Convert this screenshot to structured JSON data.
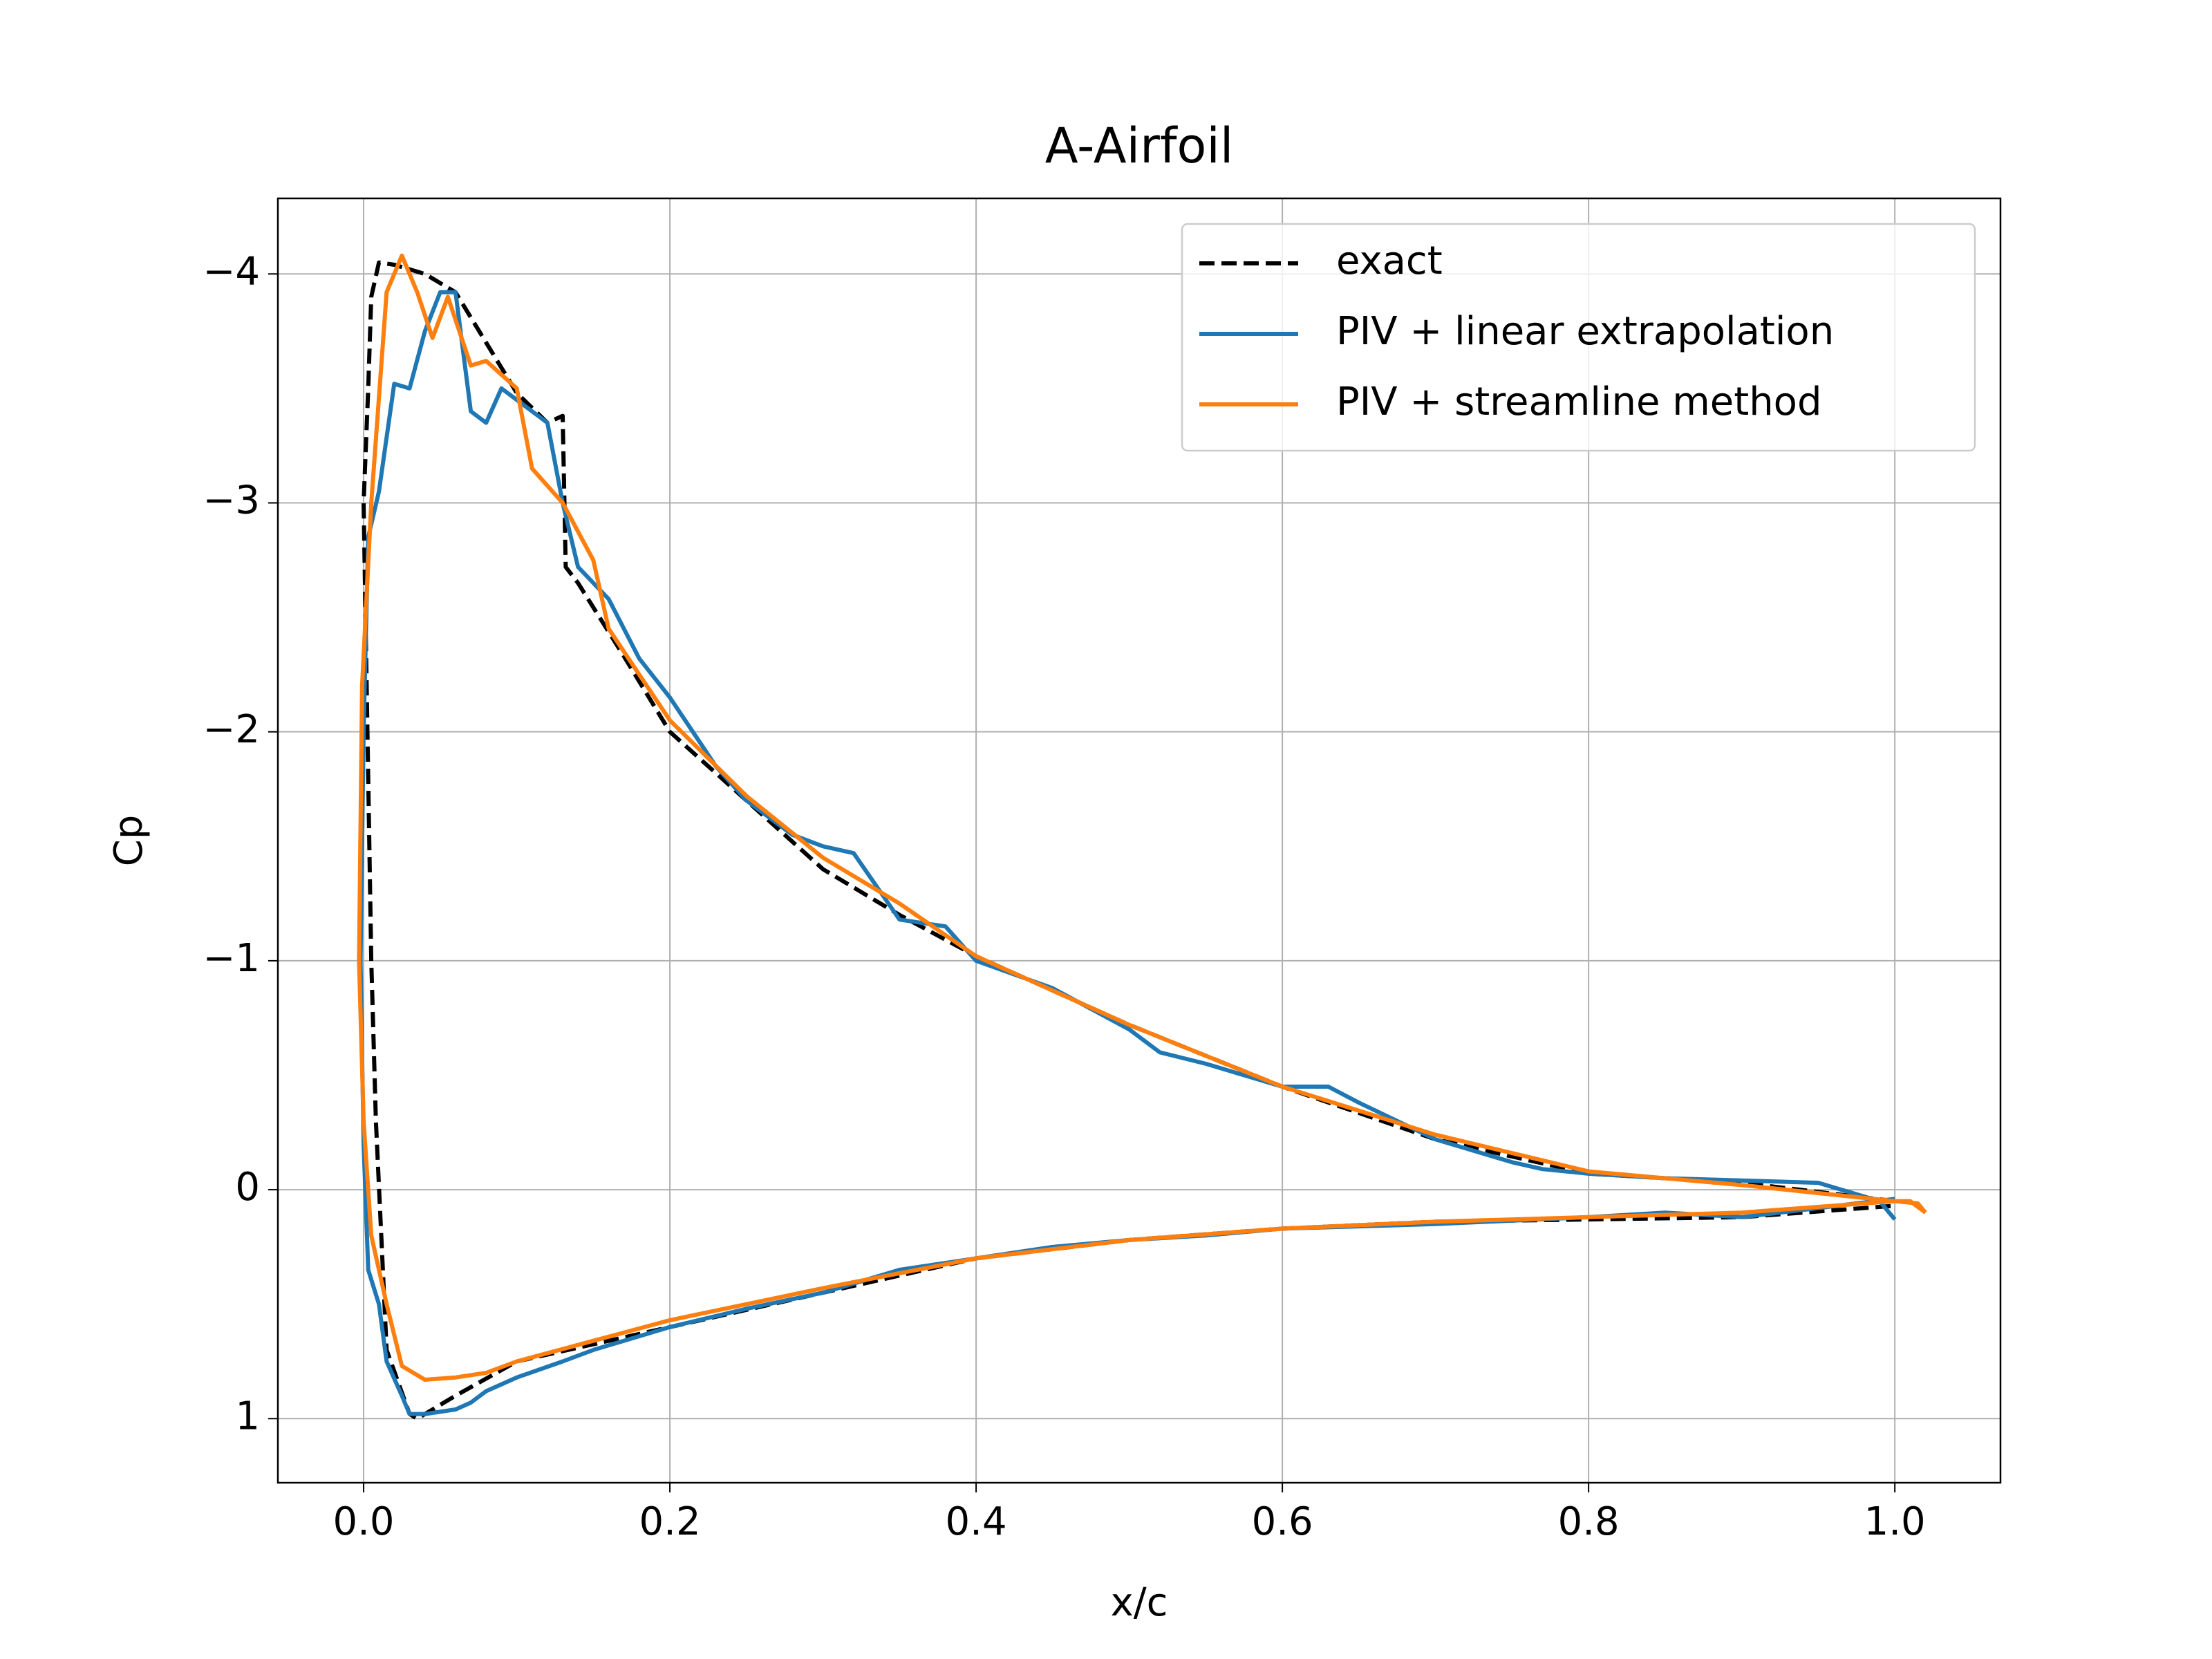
{
  "chart_data": {
    "type": "line",
    "title": "A-Airfoil",
    "x_label": "x/c",
    "y_label": "Cp",
    "xlim": [
      -0.056,
      1.069
    ],
    "ylim": [
      -4.33,
      1.28
    ],
    "y_inverted": true,
    "grid": true,
    "legend": "upper right",
    "xticks": [
      {
        "value": 0,
        "label": "0.0"
      },
      0.2,
      0.4,
      0.6,
      0.8,
      {
        "value": 1,
        "label": "1.0"
      }
    ],
    "yticks": [
      {
        "value": -4,
        "label": "−4"
      },
      {
        "value": -3,
        "label": "−3"
      },
      {
        "value": -2,
        "label": "−2"
      },
      {
        "value": -1,
        "label": "−1"
      },
      0,
      1
    ],
    "series": [
      {
        "name": "exact",
        "color": "#000000",
        "dashed": true,
        "x": [
          1.0,
          0.9,
          0.8,
          0.7,
          0.6,
          0.5,
          0.4,
          0.35,
          0.3,
          0.25,
          0.2,
          0.17,
          0.14,
          0.132,
          0.13,
          0.12,
          0.1,
          0.08,
          0.06,
          0.04,
          0.02,
          0.01,
          0.005,
          0.003,
          0.0,
          0.005,
          0.008,
          0.015,
          0.03,
          0.035,
          0.06,
          0.1,
          0.2,
          0.3,
          0.4,
          0.5,
          0.6,
          0.7,
          0.8,
          0.9,
          1.0
        ],
        "values": [
          0.05,
          -0.03,
          -0.07,
          -0.22,
          -0.45,
          -0.72,
          -1.02,
          -1.2,
          -1.4,
          -1.7,
          -2.0,
          -2.33,
          -2.65,
          -2.72,
          -3.38,
          -3.35,
          -3.48,
          -3.7,
          -3.92,
          -4.0,
          -4.04,
          -4.05,
          -3.9,
          -3.5,
          -3.0,
          -1.0,
          -0.3,
          0.7,
          0.98,
          1.0,
          0.9,
          0.75,
          0.6,
          0.45,
          0.3,
          0.22,
          0.17,
          0.14,
          0.13,
          0.12,
          0.07
        ]
      },
      {
        "name": "PIV + linear extrapolation",
        "color": "#1f77b4",
        "x": [
          1.0,
          0.99,
          0.95,
          0.9,
          0.85,
          0.8,
          0.77,
          0.75,
          0.7,
          0.65,
          0.63,
          0.6,
          0.55,
          0.52,
          0.5,
          0.45,
          0.4,
          0.38,
          0.35,
          0.32,
          0.3,
          0.28,
          0.25,
          0.23,
          0.2,
          0.18,
          0.16,
          0.14,
          0.13,
          0.12,
          0.1,
          0.09,
          0.08,
          0.07,
          0.06,
          0.05,
          0.04,
          0.03,
          0.02,
          0.01,
          0.003,
          0.0,
          -0.002,
          0.0,
          0.003,
          0.01,
          0.015,
          0.025,
          0.03,
          0.04,
          0.06,
          0.07,
          0.08,
          0.1,
          0.13,
          0.15,
          0.2,
          0.25,
          0.3,
          0.35,
          0.4,
          0.45,
          0.5,
          0.55,
          0.6,
          0.7,
          0.8,
          0.85,
          0.9,
          0.95,
          1.0
        ],
        "values": [
          0.13,
          0.05,
          -0.03,
          -0.04,
          -0.05,
          -0.07,
          -0.09,
          -0.12,
          -0.22,
          -0.38,
          -0.45,
          -0.45,
          -0.55,
          -0.6,
          -0.7,
          -0.88,
          -1.0,
          -1.15,
          -1.18,
          -1.47,
          -1.5,
          -1.55,
          -1.7,
          -1.85,
          -2.15,
          -2.32,
          -2.58,
          -2.72,
          -3.0,
          -3.35,
          -3.45,
          -3.5,
          -3.35,
          -3.4,
          -3.92,
          -3.92,
          -3.75,
          -3.5,
          -3.52,
          -3.05,
          -2.85,
          -2.0,
          -1.0,
          -0.2,
          0.35,
          0.5,
          0.75,
          0.9,
          0.98,
          0.98,
          0.96,
          0.93,
          0.88,
          0.82,
          0.75,
          0.7,
          0.6,
          0.52,
          0.45,
          0.35,
          0.3,
          0.25,
          0.22,
          0.2,
          0.17,
          0.15,
          0.12,
          0.1,
          0.12,
          0.08,
          0.04
        ]
      },
      {
        "name": "PIV + streamline method",
        "color": "#ff7f0e",
        "x": [
          1.02,
          1.01,
          1.0,
          0.9,
          0.8,
          0.7,
          0.6,
          0.5,
          0.4,
          0.35,
          0.3,
          0.25,
          0.2,
          0.18,
          0.16,
          0.15,
          0.13,
          0.11,
          0.1,
          0.08,
          0.07,
          0.055,
          0.045,
          0.035,
          0.025,
          0.015,
          0.005,
          -0.001,
          -0.003,
          0.0,
          0.005,
          0.015,
          0.025,
          0.04,
          0.06,
          0.08,
          0.1,
          0.15,
          0.2,
          0.3,
          0.4,
          0.5,
          0.6,
          0.7,
          0.8,
          0.9,
          1.0,
          1.015,
          1.02
        ],
        "values": [
          0.1,
          0.05,
          0.05,
          -0.02,
          -0.08,
          -0.24,
          -0.45,
          -0.72,
          -1.02,
          -1.25,
          -1.45,
          -1.72,
          -2.05,
          -2.25,
          -2.45,
          -2.75,
          -3.0,
          -3.15,
          -3.5,
          -3.62,
          -3.6,
          -3.9,
          -3.72,
          -3.92,
          -4.08,
          -3.92,
          -3.0,
          -2.2,
          -1.0,
          -0.3,
          0.2,
          0.5,
          0.77,
          0.83,
          0.82,
          0.8,
          0.75,
          0.66,
          0.57,
          0.43,
          0.3,
          0.22,
          0.17,
          0.14,
          0.12,
          0.1,
          0.05,
          0.06,
          0.1
        ]
      }
    ]
  }
}
